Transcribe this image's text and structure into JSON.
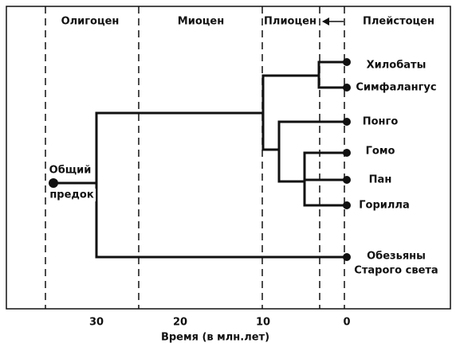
{
  "epochs": [
    "Олигоцен",
    "Миоцен",
    "Плиоцен",
    "Плейстоцен"
  ],
  "root_label": [
    "Общий",
    "предок"
  ],
  "taxa": [
    "Хилобаты",
    "Симфалангус",
    "Понго",
    "Гомо",
    "Пан",
    "Горилла",
    "Обезьяны",
    "Старого света"
  ],
  "axis": {
    "ticks": [
      "30",
      "20",
      "10",
      "0"
    ],
    "title": "Время (в млн.лет)"
  }
}
